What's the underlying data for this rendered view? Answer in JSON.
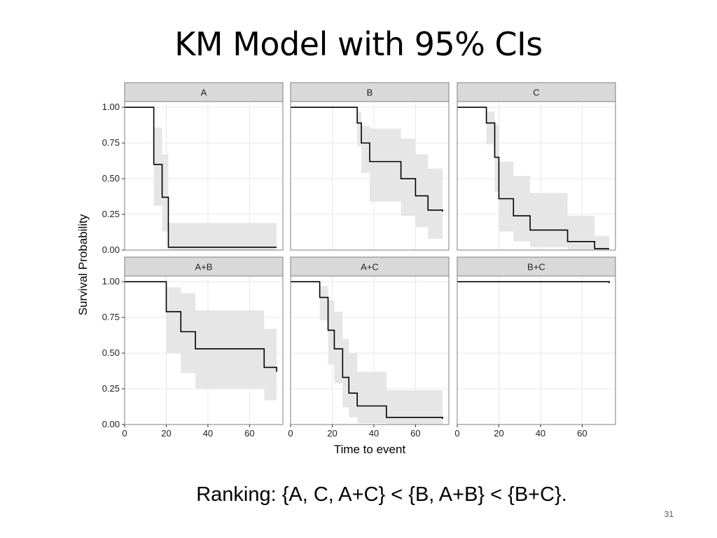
{
  "slide": {
    "title": "KM Model with 95% CIs",
    "ranking": "Ranking:  {A, C, A+C} < {B, A+B} < {B+C}.",
    "page_number": "31"
  },
  "colors": {
    "ci_band": "#e6e6e6",
    "curve": "#000000",
    "strip": "#d9d9d9",
    "grid": "#e8e8e8"
  },
  "chart_data": {
    "type": "line",
    "subtype": "kaplan-meier step curves with 95% confidence bands, faceted",
    "xlabel": "Time to event",
    "ylabel": "Survival Probability",
    "xlim": [
      0,
      76
    ],
    "ylim": [
      0,
      1.04
    ],
    "x_ticks": [
      0,
      20,
      40,
      60
    ],
    "y_ticks": [
      0.0,
      0.25,
      0.5,
      0.75,
      1.0
    ],
    "y_tick_labels": [
      "0.00",
      "0.25",
      "0.50",
      "0.75",
      "1.00"
    ],
    "grid": true,
    "facet_grid": "2 rows x 3 columns",
    "panels": [
      {
        "name": "A",
        "steps": [
          [
            0,
            1.0
          ],
          [
            14,
            0.6
          ],
          [
            18,
            0.37
          ],
          [
            21,
            0.02
          ],
          [
            73,
            0.02
          ]
        ],
        "ci": [
          [
            0,
            1.0,
            1.0
          ],
          [
            14,
            0.31,
            0.86
          ],
          [
            18,
            0.13,
            0.67
          ],
          [
            21,
            0.0,
            0.19
          ],
          [
            73,
            0.0,
            0.19
          ]
        ]
      },
      {
        "name": "B",
        "steps": [
          [
            0,
            1.0
          ],
          [
            32,
            0.89
          ],
          [
            34,
            0.75
          ],
          [
            38,
            0.62
          ],
          [
            53,
            0.5
          ],
          [
            60,
            0.38
          ],
          [
            66,
            0.28
          ],
          [
            73,
            0.27
          ]
        ],
        "ci": [
          [
            0,
            1.0,
            1.0
          ],
          [
            32,
            0.73,
            0.97
          ],
          [
            34,
            0.54,
            0.87
          ],
          [
            38,
            0.34,
            0.85
          ],
          [
            53,
            0.24,
            0.78
          ],
          [
            60,
            0.16,
            0.67
          ],
          [
            66,
            0.08,
            0.57
          ],
          [
            73,
            0.07,
            0.57
          ]
        ]
      },
      {
        "name": "C",
        "steps": [
          [
            0,
            1.0
          ],
          [
            14,
            0.89
          ],
          [
            18,
            0.65
          ],
          [
            20,
            0.36
          ],
          [
            27,
            0.24
          ],
          [
            35,
            0.14
          ],
          [
            53,
            0.06
          ],
          [
            66,
            0.01
          ],
          [
            73,
            0.01
          ]
        ],
        "ci": [
          [
            0,
            1.0,
            1.0
          ],
          [
            14,
            0.74,
            0.97
          ],
          [
            18,
            0.41,
            0.88
          ],
          [
            20,
            0.13,
            0.62
          ],
          [
            27,
            0.06,
            0.52
          ],
          [
            35,
            0.02,
            0.4
          ],
          [
            53,
            0.0,
            0.24
          ],
          [
            66,
            0.0,
            0.1
          ],
          [
            73,
            0.0,
            0.1
          ]
        ]
      },
      {
        "name": "A+B",
        "steps": [
          [
            0,
            1.0
          ],
          [
            20,
            0.79
          ],
          [
            27,
            0.65
          ],
          [
            34,
            0.53
          ],
          [
            67,
            0.4
          ],
          [
            73,
            0.37
          ]
        ],
        "ci": [
          [
            0,
            1.0,
            1.0
          ],
          [
            20,
            0.5,
            0.96
          ],
          [
            27,
            0.36,
            0.92
          ],
          [
            34,
            0.25,
            0.8
          ],
          [
            67,
            0.17,
            0.67
          ],
          [
            73,
            0.17,
            0.67
          ]
        ]
      },
      {
        "name": "A+C",
        "steps": [
          [
            0,
            1.0
          ],
          [
            14,
            0.89
          ],
          [
            18,
            0.66
          ],
          [
            21,
            0.53
          ],
          [
            25,
            0.33
          ],
          [
            28,
            0.22
          ],
          [
            32,
            0.13
          ],
          [
            46,
            0.05
          ],
          [
            73,
            0.04
          ]
        ],
        "ci": [
          [
            0,
            1.0,
            1.0
          ],
          [
            14,
            0.73,
            0.97
          ],
          [
            18,
            0.42,
            0.87
          ],
          [
            21,
            0.29,
            0.79
          ],
          [
            25,
            0.12,
            0.6
          ],
          [
            28,
            0.05,
            0.5
          ],
          [
            32,
            0.01,
            0.37
          ],
          [
            46,
            0.0,
            0.24
          ],
          [
            73,
            0.0,
            0.24
          ]
        ]
      },
      {
        "name": "B+C",
        "steps": [
          [
            0,
            1.0
          ],
          [
            73,
            0.99
          ]
        ],
        "ci": []
      }
    ]
  }
}
